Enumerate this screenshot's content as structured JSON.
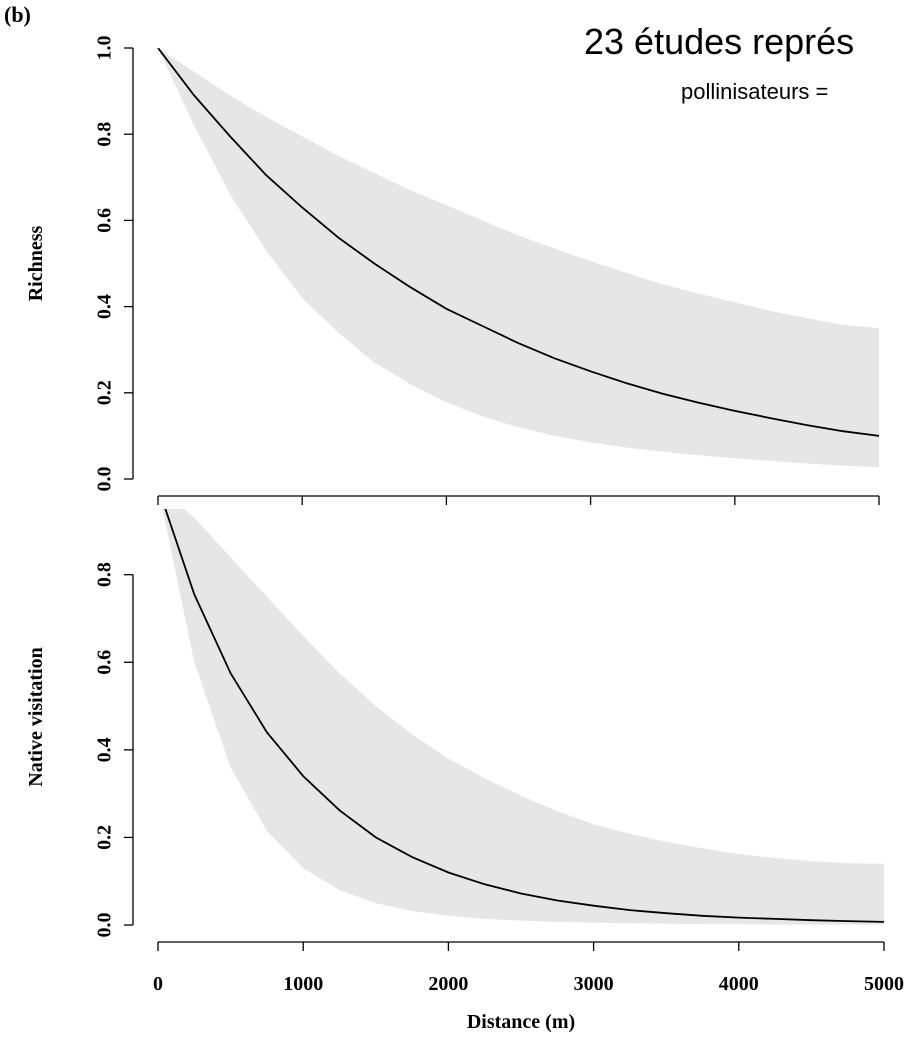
{
  "panel_label": "(b)",
  "overlay": {
    "title": "23 études représ",
    "subtitle": "pollinisateurs ="
  },
  "chart_data": [
    {
      "type": "line",
      "title": "",
      "xlabel": "",
      "ylabel": "Richness",
      "xlim": [
        0,
        5000
      ],
      "ylim": [
        0,
        1.0
      ],
      "y_ticks": [
        0.0,
        0.2,
        0.4,
        0.6,
        0.8,
        1.0
      ],
      "y_tick_labels": [
        "0.0",
        "0.2",
        "0.4",
        "0.6",
        "0.8",
        "1.0"
      ],
      "x_ticks": [
        0,
        1000,
        2000,
        3000,
        4000,
        5000
      ],
      "x_tick_labels": [],
      "grid": false,
      "series": [
        {
          "x": [
            0,
            250,
            500,
            750,
            1000,
            1250,
            1500,
            1750,
            2000,
            2250,
            2500,
            2750,
            3000,
            3250,
            3500,
            3750,
            4000,
            4250,
            4500,
            4750,
            5000
          ],
          "fit": [
            1.0,
            0.89,
            0.795,
            0.705,
            0.63,
            0.56,
            0.5,
            0.445,
            0.395,
            0.355,
            0.315,
            0.28,
            0.25,
            0.222,
            0.198,
            0.177,
            0.158,
            0.141,
            0.125,
            0.111,
            0.1
          ],
          "lower": [
            1.0,
            0.82,
            0.66,
            0.53,
            0.42,
            0.34,
            0.27,
            0.22,
            0.178,
            0.145,
            0.12,
            0.1,
            0.085,
            0.073,
            0.063,
            0.055,
            0.048,
            0.042,
            0.036,
            0.031,
            0.027
          ],
          "upper": [
            1.0,
            0.945,
            0.89,
            0.84,
            0.795,
            0.75,
            0.71,
            0.67,
            0.635,
            0.6,
            0.565,
            0.535,
            0.505,
            0.478,
            0.452,
            0.43,
            0.41,
            0.39,
            0.373,
            0.358,
            0.35
          ]
        }
      ]
    },
    {
      "type": "line",
      "title": "",
      "xlabel": "Distance (m)",
      "ylabel": "Native visitation",
      "xlim": [
        0,
        5000
      ],
      "ylim": [
        0,
        0.95
      ],
      "y_ticks": [
        0.0,
        0.2,
        0.4,
        0.6,
        0.8
      ],
      "y_tick_labels": [
        "0.0",
        "0.2",
        "0.4",
        "0.6",
        "0.8"
      ],
      "x_ticks": [
        0,
        1000,
        2000,
        3000,
        4000,
        5000
      ],
      "x_tick_labels": [
        "0",
        "1000",
        "2000",
        "3000",
        "4000",
        "5000"
      ],
      "grid": false,
      "series": [
        {
          "x": [
            0,
            250,
            500,
            750,
            1000,
            1250,
            1500,
            1750,
            2000,
            2250,
            2500,
            2750,
            3000,
            3250,
            3500,
            3750,
            4000,
            4250,
            4500,
            4750,
            5000
          ],
          "fit": [
            1.0,
            0.755,
            0.575,
            0.44,
            0.34,
            0.262,
            0.2,
            0.155,
            0.12,
            0.093,
            0.072,
            0.056,
            0.044,
            0.034,
            0.027,
            0.021,
            0.017,
            0.014,
            0.011,
            0.009,
            0.007
          ],
          "lower": [
            1.0,
            0.6,
            0.36,
            0.215,
            0.13,
            0.08,
            0.05,
            0.032,
            0.021,
            0.014,
            0.01,
            0.007,
            0.005,
            0.004,
            0.003,
            0.002,
            0.002,
            0.001,
            0.001,
            0.001,
            0.001
          ],
          "upper": [
            1.0,
            0.93,
            0.84,
            0.75,
            0.66,
            0.575,
            0.5,
            0.435,
            0.38,
            0.335,
            0.295,
            0.26,
            0.23,
            0.208,
            0.19,
            0.175,
            0.162,
            0.153,
            0.146,
            0.141,
            0.14
          ]
        }
      ]
    }
  ]
}
